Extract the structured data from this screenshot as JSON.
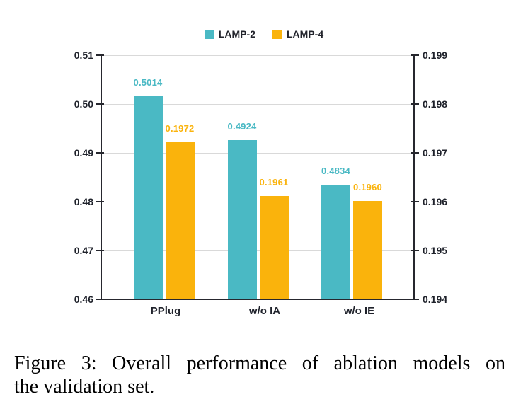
{
  "caption": {
    "lines": [
      "Figure 3: Overall performance of ablation models on",
      "the validation set."
    ]
  },
  "chart_data": {
    "type": "bar",
    "title": "",
    "categories": [
      "PPlug",
      "w/o IA",
      "w/o IE"
    ],
    "series": [
      {
        "name": "LAMP-2",
        "axis": "left",
        "color": "#4AB9C4",
        "values": [
          0.5014,
          0.4924,
          0.4834
        ],
        "labels": [
          "0.5014",
          "0.4924",
          "0.4834"
        ]
      },
      {
        "name": "LAMP-4",
        "axis": "right",
        "color": "#FAB30C",
        "values": [
          0.1972,
          0.1961,
          0.196
        ],
        "labels": [
          "0.1972",
          "0.1961",
          "0.1960"
        ]
      }
    ],
    "left_axis": {
      "min": 0.46,
      "max": 0.51,
      "ticks": [
        "0.51",
        "0.50",
        "0.49",
        "0.48",
        "0.47",
        "0.46"
      ]
    },
    "right_axis": {
      "min": 0.194,
      "max": 0.199,
      "ticks": [
        "0.199",
        "0.198",
        "0.197",
        "0.196",
        "0.195",
        "0.194"
      ]
    },
    "legend": {
      "position": "top"
    },
    "grid": true,
    "colors": {
      "axis": "#26272e",
      "gridline": "#d9d9d9",
      "tick_text": "#1f222b"
    }
  }
}
